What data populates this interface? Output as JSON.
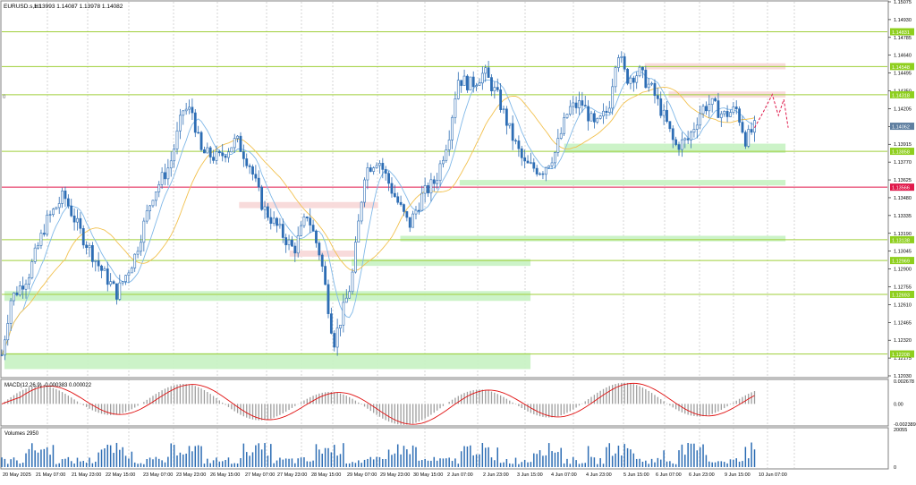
{
  "header": {
    "symbol": "EURUSD.s,H1",
    "ohlc": "1.13993 1.14087 1.13978 1.14082"
  },
  "colors": {
    "background": "#ffffff",
    "candle": "#2d6db4",
    "grid": "#b8b8b8",
    "level_line": "#9fcf3a",
    "level_label_bg": "#8fcf1f",
    "red_line": "#e0184a",
    "current_price_bg": "#5f7fa0",
    "demand_zone": "#c9f2c5",
    "supply_zone": "#f8d9d9",
    "ma_fast": "#80b8e8",
    "ma_slow": "#f2c14e",
    "macd_signal": "#e01010",
    "macd_hist": "#9e9e9e",
    "volume": "#2d6db4",
    "forecast": "#e0184a"
  },
  "price_axis": {
    "ticks": [
      "1.15075",
      "1.14930",
      "1.14785",
      "1.14640",
      "1.14495",
      "1.14350",
      "1.14205",
      "1.14060",
      "1.13915",
      "1.13770",
      "1.13625",
      "1.13480",
      "1.13335",
      "1.13190",
      "1.13045",
      "1.12900",
      "1.12755",
      "1.12610",
      "1.12465",
      "1.12320",
      "1.12175",
      "1.12030"
    ],
    "min": 1.1203,
    "max": 1.15075
  },
  "levels": [
    {
      "label": "1.14831",
      "price": 1.14831,
      "kind": "level"
    },
    {
      "label": "1.14548",
      "price": 1.14548,
      "kind": "level"
    },
    {
      "label": "1.14318",
      "price": 1.14318,
      "kind": "level"
    },
    {
      "label": "1.14062",
      "price": 1.14062,
      "kind": "current"
    },
    {
      "label": "1.13858",
      "price": 1.13858,
      "kind": "level"
    },
    {
      "label": "1.13566",
      "price": 1.13566,
      "kind": "red"
    },
    {
      "label": "1.13138",
      "price": 1.13138,
      "kind": "level"
    },
    {
      "label": "1.12969",
      "price": 1.12969,
      "kind": "level"
    },
    {
      "label": "1.12693",
      "price": 1.12693,
      "kind": "level"
    },
    {
      "label": "1.12208",
      "price": 1.12208,
      "kind": "level"
    }
  ],
  "zones": [
    {
      "kind": "supply",
      "x0": 0.726,
      "x1": 0.885,
      "p0": 1.14525,
      "p1": 1.14575
    },
    {
      "kind": "supply",
      "x0": 0.753,
      "x1": 0.885,
      "p0": 1.14295,
      "p1": 1.14345
    },
    {
      "kind": "supply",
      "x0": 0.268,
      "x1": 0.425,
      "p0": 1.13395,
      "p1": 1.13445
    },
    {
      "kind": "supply",
      "x0": 0.325,
      "x1": 0.4,
      "p0": 1.13,
      "p1": 1.1305
    },
    {
      "kind": "demand",
      "x0": 0.635,
      "x1": 0.885,
      "p0": 1.13845,
      "p1": 1.1392
    },
    {
      "kind": "demand",
      "x0": 0.517,
      "x1": 0.885,
      "p0": 1.1358,
      "p1": 1.13625
    },
    {
      "kind": "demand",
      "x0": 0.45,
      "x1": 0.885,
      "p0": 1.13125,
      "p1": 1.1317
    },
    {
      "kind": "demand",
      "x0": 0.395,
      "x1": 0.597,
      "p0": 1.12925,
      "p1": 1.1298
    },
    {
      "kind": "demand",
      "x0": 0.003,
      "x1": 0.597,
      "p0": 1.1264,
      "p1": 1.1272
    },
    {
      "kind": "demand",
      "x0": 0.003,
      "x1": 0.597,
      "p0": 1.12085,
      "p1": 1.12215
    }
  ],
  "macd": {
    "title": "MACD(12,26,9) -0.000383 0.000022",
    "ticks": [
      "0.002678",
      "0.00",
      "-0.002389"
    ],
    "min": -0.002389,
    "max": 0.002678
  },
  "volume": {
    "title": "Volumes 2950",
    "ticks": [
      "20055",
      "0"
    ],
    "max": 20055
  },
  "time_axis": [
    "20 May 2025",
    "21 May 07:00",
    "21 May 23:00",
    "22 May 15:00",
    "23 May 07:00",
    "23 May 23:00",
    "26 May 15:00",
    "27 May 07:00",
    "27 May 23:00",
    "28 May 15:00",
    "29 May 07:00",
    "29 May 23:00",
    "30 May 15:00",
    "2 Jun 07:00",
    "2 Jun 23:00",
    "3 Jun 15:00",
    "4 Jun 07:00",
    "4 Jun 23:00",
    "5 Jun 15:00",
    "6 Jun 07:00",
    "6 Jun 23:00",
    "9 Jun 15:00",
    "10 Jun 07:00"
  ],
  "chart_data": {
    "type": "candlestick",
    "symbol": "EURUSD.s,H1",
    "ylim": [
      1.1203,
      1.15075
    ],
    "price_path": [
      {
        "x": 0.0,
        "y": 1.122
      },
      {
        "x": 0.01,
        "y": 1.1265
      },
      {
        "x": 0.03,
        "y": 1.1285
      },
      {
        "x": 0.05,
        "y": 1.1328
      },
      {
        "x": 0.07,
        "y": 1.135
      },
      {
        "x": 0.09,
        "y": 1.1318
      },
      {
        "x": 0.11,
        "y": 1.1292
      },
      {
        "x": 0.13,
        "y": 1.127
      },
      {
        "x": 0.15,
        "y": 1.13
      },
      {
        "x": 0.17,
        "y": 1.135
      },
      {
        "x": 0.19,
        "y": 1.1375
      },
      {
        "x": 0.205,
        "y": 1.142
      },
      {
        "x": 0.215,
        "y": 1.1418
      },
      {
        "x": 0.225,
        "y": 1.1385
      },
      {
        "x": 0.245,
        "y": 1.138
      },
      {
        "x": 0.265,
        "y": 1.1395
      },
      {
        "x": 0.28,
        "y": 1.1375
      },
      {
        "x": 0.295,
        "y": 1.134
      },
      {
        "x": 0.31,
        "y": 1.1325
      },
      {
        "x": 0.33,
        "y": 1.1305
      },
      {
        "x": 0.345,
        "y": 1.1335
      },
      {
        "x": 0.36,
        "y": 1.13
      },
      {
        "x": 0.375,
        "y": 1.123
      },
      {
        "x": 0.385,
        "y": 1.1255
      },
      {
        "x": 0.395,
        "y": 1.128
      },
      {
        "x": 0.41,
        "y": 1.137
      },
      {
        "x": 0.425,
        "y": 1.138
      },
      {
        "x": 0.44,
        "y": 1.1355
      },
      {
        "x": 0.46,
        "y": 1.1325
      },
      {
        "x": 0.475,
        "y": 1.135
      },
      {
        "x": 0.49,
        "y": 1.1362
      },
      {
        "x": 0.505,
        "y": 1.14
      },
      {
        "x": 0.515,
        "y": 1.1445
      },
      {
        "x": 0.53,
        "y": 1.144
      },
      {
        "x": 0.545,
        "y": 1.145
      },
      {
        "x": 0.56,
        "y": 1.143
      },
      {
        "x": 0.575,
        "y": 1.14
      },
      {
        "x": 0.59,
        "y": 1.1375
      },
      {
        "x": 0.61,
        "y": 1.137
      },
      {
        "x": 0.625,
        "y": 1.1385
      },
      {
        "x": 0.64,
        "y": 1.142
      },
      {
        "x": 0.655,
        "y": 1.1425
      },
      {
        "x": 0.67,
        "y": 1.1405
      },
      {
        "x": 0.685,
        "y": 1.142
      },
      {
        "x": 0.695,
        "y": 1.147
      },
      {
        "x": 0.705,
        "y": 1.1445
      },
      {
        "x": 0.72,
        "y": 1.145
      },
      {
        "x": 0.735,
        "y": 1.1435
      },
      {
        "x": 0.75,
        "y": 1.141
      },
      {
        "x": 0.76,
        "y": 1.139
      },
      {
        "x": 0.775,
        "y": 1.1395
      },
      {
        "x": 0.79,
        "y": 1.142
      },
      {
        "x": 0.8,
        "y": 1.1425
      },
      {
        "x": 0.815,
        "y": 1.1415
      },
      {
        "x": 0.83,
        "y": 1.142
      },
      {
        "x": 0.84,
        "y": 1.1395
      },
      {
        "x": 0.85,
        "y": 1.1405
      }
    ],
    "forecast_path": [
      {
        "x": 0.85,
        "y": 1.1405
      },
      {
        "x": 0.86,
        "y": 1.1418
      },
      {
        "x": 0.87,
        "y": 1.1432
      },
      {
        "x": 0.877,
        "y": 1.1415
      },
      {
        "x": 0.883,
        "y": 1.1428
      },
      {
        "x": 0.888,
        "y": 1.1405
      }
    ]
  }
}
